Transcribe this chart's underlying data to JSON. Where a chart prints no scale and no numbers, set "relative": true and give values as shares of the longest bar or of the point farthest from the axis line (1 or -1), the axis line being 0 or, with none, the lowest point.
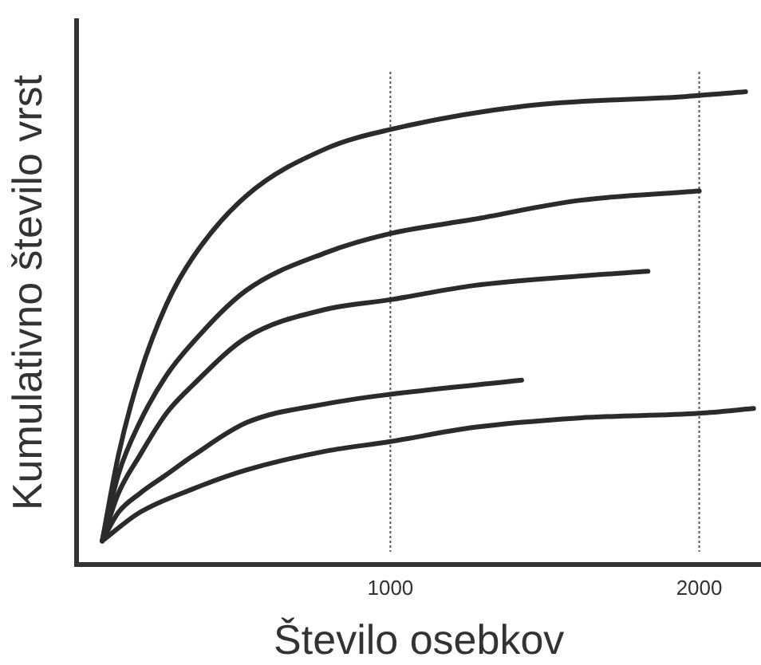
{
  "chart_data": {
    "type": "line",
    "xlabel": "Število osebkov",
    "ylabel": "Kumulativno število vrst",
    "relative": true,
    "xlim": [
      -15,
      2200
    ],
    "xticks": [
      1000,
      2000
    ],
    "grid": "x",
    "marker": "none",
    "series": [
      {
        "color": "#2b2b2b",
        "x": [
          67,
          119,
          188,
          275,
          361,
          534,
          793,
          1000,
          1440,
          1959,
          2150
        ],
        "values": [
          0.05,
          0.23,
          0.4,
          0.55,
          0.65,
          0.78,
          0.88,
          0.92,
          0.97,
          0.99,
          1.0
        ]
      },
      {
        "color": "#2b2b2b",
        "x": [
          67,
          119,
          188,
          275,
          361,
          534,
          793,
          1000,
          1269,
          1611,
          2000
        ],
        "values": [
          0.05,
          0.19,
          0.3,
          0.4,
          0.47,
          0.58,
          0.66,
          0.7,
          0.73,
          0.77,
          0.79
        ]
      },
      {
        "color": "#2b2b2b",
        "x": [
          67,
          119,
          188,
          275,
          361,
          534,
          793,
          1000,
          1269,
          1611,
          1834
        ],
        "values": [
          0.05,
          0.15,
          0.23,
          0.32,
          0.38,
          0.48,
          0.54,
          0.56,
          0.59,
          0.61,
          0.62
        ]
      },
      {
        "color": "#2b2b2b",
        "x": [
          67,
          119,
          188,
          275,
          361,
          534,
          793,
          1000,
          1425
        ],
        "values": [
          0.05,
          0.11,
          0.15,
          0.19,
          0.23,
          0.3,
          0.34,
          0.36,
          0.39
        ]
      },
      {
        "color": "#2b2b2b",
        "x": [
          67,
          188,
          361,
          534,
          793,
          1000,
          1269,
          1611,
          2000,
          2176
        ],
        "values": [
          0.05,
          0.11,
          0.16,
          0.2,
          0.24,
          0.26,
          0.29,
          0.31,
          0.32,
          0.33
        ]
      }
    ]
  }
}
